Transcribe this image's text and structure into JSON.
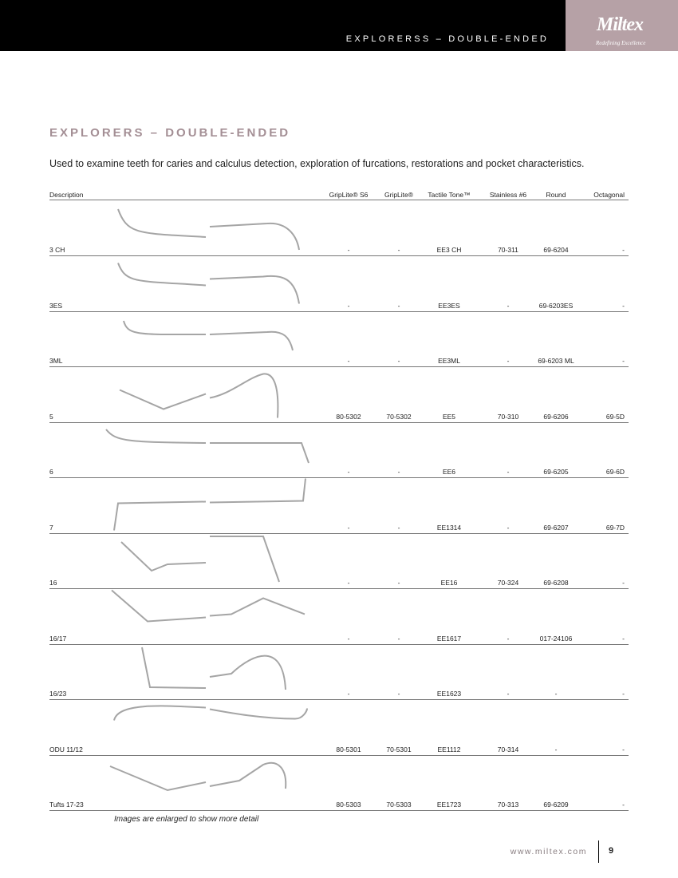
{
  "header": {
    "section": "EXPLORERSS – DOUBLE-ENDED",
    "logo": "Miltex",
    "tagline": "Redefining Excellence"
  },
  "title": "EXPLORERS – DOUBLE-ENDED",
  "description": "Used to examine teeth for caries and calculus detection, exploration of furcations, restorations and pocket characteristics.",
  "table": {
    "columns": [
      "Description",
      "GripLite® S6",
      "GripLite®",
      "Tactile Tone™",
      "Stainless #6",
      "Round",
      "Octagonal"
    ],
    "rows": [
      [
        "3 CH",
        "-",
        "-",
        "EE3 CH",
        "70-311",
        "69-6204",
        "-"
      ],
      [
        "3ES",
        "-",
        "-",
        "EE3ES",
        "-",
        "69-6203ES",
        "-"
      ],
      [
        "3ML",
        "-",
        "-",
        "EE3ML",
        "-",
        "69-6203 ML",
        "-"
      ],
      [
        "5",
        "80-5302",
        "70-5302",
        "EE5",
        "70-310",
        "69-6206",
        "69-5D"
      ],
      [
        "6",
        "-",
        "-",
        "EE6",
        "-",
        "69-6205",
        "69-6D"
      ],
      [
        "7",
        "-",
        "-",
        "EE1314",
        "-",
        "69-6207",
        "69-7D"
      ],
      [
        "16",
        "-",
        "-",
        "EE16",
        "70-324",
        "69-6208",
        "-"
      ],
      [
        "16/17",
        "-",
        "-",
        "EE1617",
        "-",
        "017-24106",
        "-"
      ],
      [
        "16/23",
        "-",
        "-",
        "EE1623",
        "-",
        "-",
        "-"
      ],
      [
        "ODU 11/12",
        "80-5301",
        "70-5301",
        "EE1112",
        "70-314",
        "-",
        "-"
      ],
      [
        "Tufts 17-23",
        "80-5303",
        "70-5303",
        "EE1723",
        "70-313",
        "69-6209",
        "-"
      ]
    ]
  },
  "footnote": "Images are enlarged to show more detail",
  "footer": {
    "url": "www.miltex.com",
    "page": "9"
  }
}
